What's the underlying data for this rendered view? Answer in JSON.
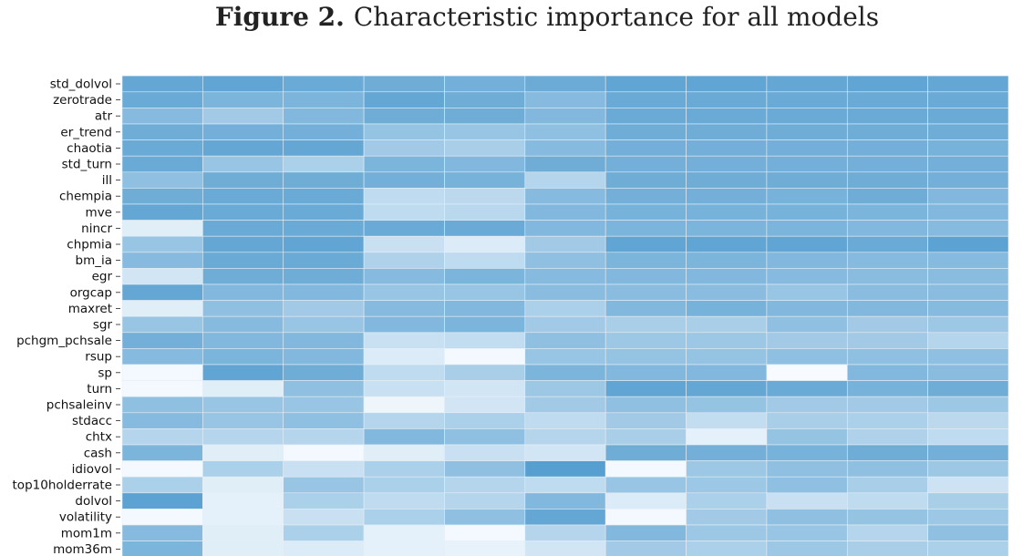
{
  "figure": {
    "number": "Figure 2.",
    "caption": "Characteristic importance for all models"
  },
  "chart_data": {
    "type": "heatmap",
    "title": "Characteristic importance for all models",
    "row_labels": [
      "std_dolvol",
      "zerotrade",
      "atr",
      "er_trend",
      "chaotia",
      "std_turn",
      "ill",
      "chempia",
      "mve",
      "nincr",
      "chpmia",
      "bm_ia",
      "egr",
      "orgcap",
      "maxret",
      "sgr",
      "pchgm_pchsale",
      "rsup",
      "sp",
      "turn",
      "pchsaleinv",
      "stdacc",
      "chtx",
      "cash",
      "idiovol",
      "top10holderrate",
      "dolvol",
      "volatility",
      "mom1m",
      "mom36m"
    ],
    "n_columns": 11,
    "values": [
      [
        0.78,
        0.8,
        0.75,
        0.72,
        0.7,
        0.74,
        0.8,
        0.8,
        0.78,
        0.8,
        0.78
      ],
      [
        0.75,
        0.65,
        0.65,
        0.78,
        0.72,
        0.6,
        0.75,
        0.75,
        0.75,
        0.75,
        0.75
      ],
      [
        0.6,
        0.45,
        0.62,
        0.72,
        0.72,
        0.62,
        0.75,
        0.75,
        0.75,
        0.75,
        0.75
      ],
      [
        0.72,
        0.7,
        0.7,
        0.52,
        0.5,
        0.55,
        0.72,
        0.72,
        0.72,
        0.72,
        0.72
      ],
      [
        0.75,
        0.78,
        0.78,
        0.45,
        0.42,
        0.6,
        0.7,
        0.7,
        0.7,
        0.7,
        0.68
      ],
      [
        0.75,
        0.5,
        0.4,
        0.65,
        0.62,
        0.72,
        0.7,
        0.7,
        0.7,
        0.7,
        0.7
      ],
      [
        0.55,
        0.72,
        0.72,
        0.7,
        0.68,
        0.35,
        0.72,
        0.72,
        0.72,
        0.72,
        0.7
      ],
      [
        0.72,
        0.75,
        0.75,
        0.3,
        0.32,
        0.6,
        0.7,
        0.7,
        0.68,
        0.72,
        0.62
      ],
      [
        0.78,
        0.75,
        0.75,
        0.3,
        0.33,
        0.62,
        0.68,
        0.68,
        0.68,
        0.65,
        0.62
      ],
      [
        0.12,
        0.75,
        0.75,
        0.75,
        0.75,
        0.62,
        0.65,
        0.65,
        0.65,
        0.62,
        0.6
      ],
      [
        0.5,
        0.78,
        0.8,
        0.25,
        0.15,
        0.45,
        0.8,
        0.8,
        0.8,
        0.75,
        0.82
      ],
      [
        0.6,
        0.75,
        0.75,
        0.38,
        0.3,
        0.55,
        0.65,
        0.65,
        0.62,
        0.6,
        0.6
      ],
      [
        0.2,
        0.72,
        0.72,
        0.6,
        0.65,
        0.6,
        0.62,
        0.62,
        0.6,
        0.58,
        0.58
      ],
      [
        0.78,
        0.62,
        0.62,
        0.5,
        0.5,
        0.58,
        0.58,
        0.58,
        0.5,
        0.58,
        0.58
      ],
      [
        0.12,
        0.55,
        0.45,
        0.6,
        0.62,
        0.4,
        0.62,
        0.68,
        0.62,
        0.62,
        0.6
      ],
      [
        0.5,
        0.6,
        0.5,
        0.62,
        0.65,
        0.45,
        0.42,
        0.42,
        0.55,
        0.45,
        0.48
      ],
      [
        0.7,
        0.62,
        0.62,
        0.25,
        0.28,
        0.55,
        0.48,
        0.48,
        0.45,
        0.45,
        0.35
      ],
      [
        0.6,
        0.65,
        0.62,
        0.15,
        0.02,
        0.5,
        0.52,
        0.52,
        0.55,
        0.55,
        0.55
      ],
      [
        0.02,
        0.8,
        0.72,
        0.3,
        0.42,
        0.65,
        0.62,
        0.62,
        0.0,
        0.62,
        0.58
      ],
      [
        0.02,
        0.12,
        0.55,
        0.25,
        0.2,
        0.48,
        0.8,
        0.78,
        0.75,
        0.68,
        0.72
      ],
      [
        0.55,
        0.5,
        0.5,
        0.05,
        0.2,
        0.45,
        0.55,
        0.52,
        0.45,
        0.45,
        0.48
      ],
      [
        0.6,
        0.5,
        0.55,
        0.35,
        0.4,
        0.3,
        0.45,
        0.28,
        0.42,
        0.4,
        0.32
      ],
      [
        0.35,
        0.35,
        0.35,
        0.62,
        0.55,
        0.35,
        0.42,
        0.1,
        0.52,
        0.38,
        0.3
      ],
      [
        0.65,
        0.12,
        0.02,
        0.12,
        0.25,
        0.2,
        0.72,
        0.7,
        0.68,
        0.72,
        0.7
      ],
      [
        0.02,
        0.4,
        0.25,
        0.4,
        0.55,
        0.85,
        0.02,
        0.48,
        0.55,
        0.55,
        0.48
      ],
      [
        0.4,
        0.12,
        0.5,
        0.4,
        0.35,
        0.3,
        0.5,
        0.48,
        0.55,
        0.42,
        0.22
      ],
      [
        0.82,
        0.1,
        0.4,
        0.3,
        0.35,
        0.62,
        0.15,
        0.4,
        0.25,
        0.3,
        0.42
      ],
      [
        0.02,
        0.1,
        0.25,
        0.4,
        0.55,
        0.78,
        0.02,
        0.45,
        0.55,
        0.52,
        0.48
      ],
      [
        0.6,
        0.12,
        0.4,
        0.1,
        0.02,
        0.35,
        0.62,
        0.48,
        0.5,
        0.35,
        0.55
      ],
      [
        0.65,
        0.12,
        0.15,
        0.1,
        0.08,
        0.2,
        0.45,
        0.4,
        0.48,
        0.42,
        0.4
      ]
    ],
    "colormap": {
      "low": "#f7fbff",
      "high": "#3a8fc8"
    },
    "grid": true,
    "legend": "none"
  }
}
